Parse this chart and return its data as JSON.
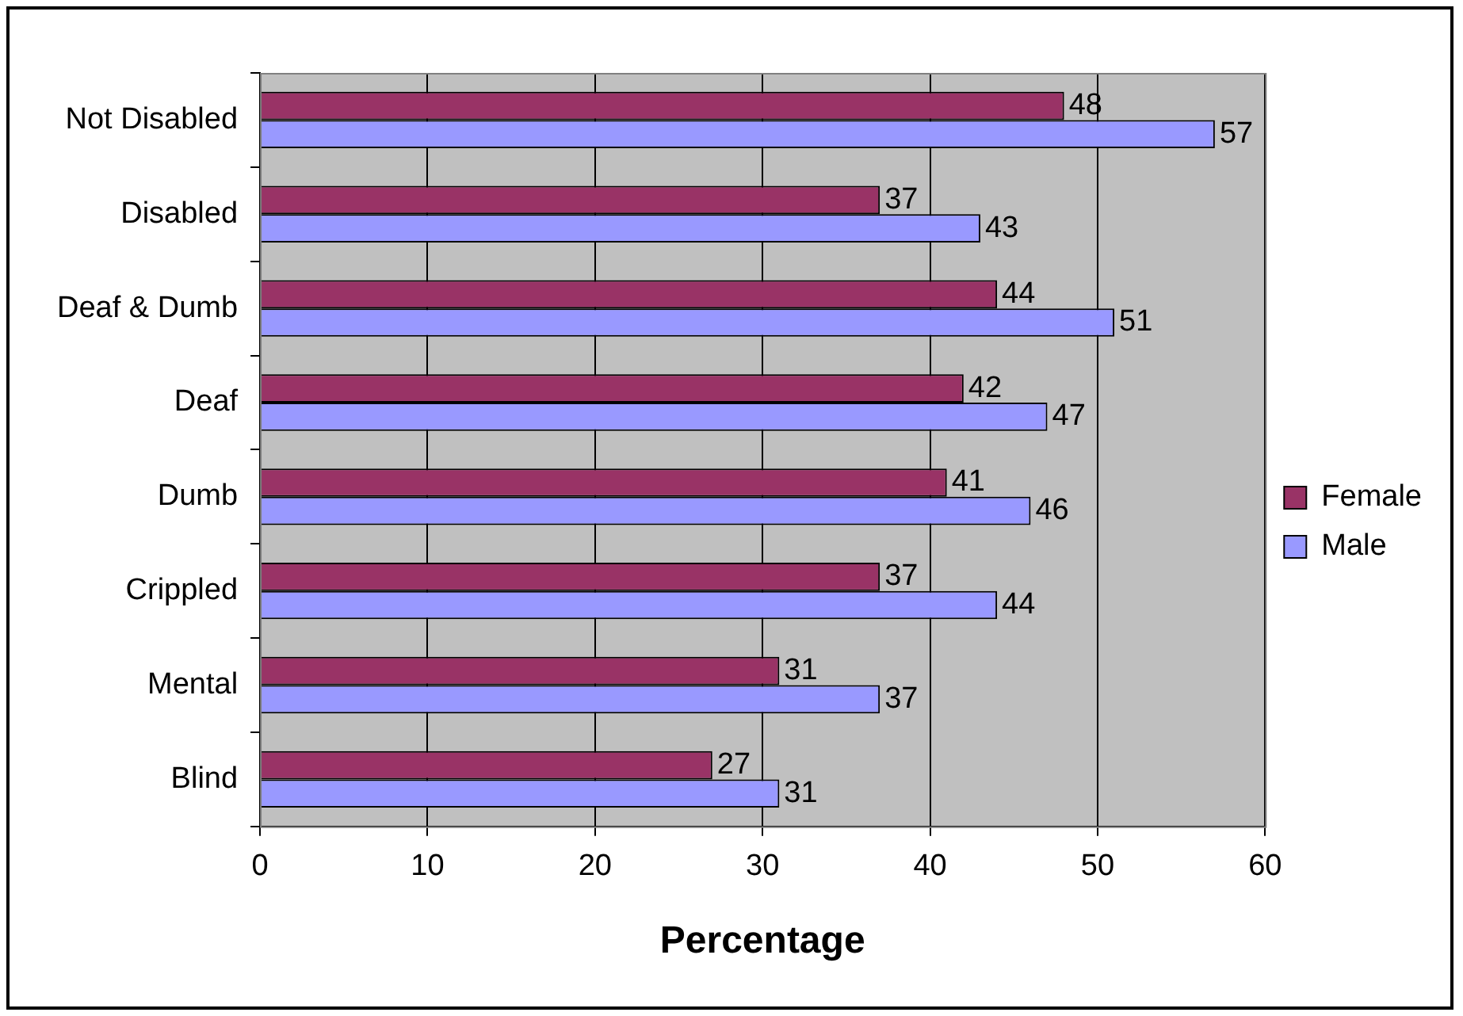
{
  "chart_data": {
    "type": "bar",
    "orientation": "horizontal",
    "xlabel": "Percentage",
    "categories": [
      "Not Disabled",
      "Disabled",
      "Deaf & Dumb",
      "Deaf",
      "Dumb",
      "Crippled",
      "Mental",
      "Blind"
    ],
    "series": [
      {
        "name": "Female",
        "color": "#993366",
        "values": [
          48,
          37,
          44,
          42,
          41,
          37,
          31,
          27
        ]
      },
      {
        "name": "Male",
        "color": "#9999ff",
        "values": [
          57,
          43,
          51,
          47,
          46,
          44,
          37,
          31
        ]
      }
    ],
    "xlim": [
      0,
      60
    ],
    "xticks": [
      0,
      10,
      20,
      30,
      40,
      50,
      60
    ],
    "grid": "x",
    "legend": "right",
    "data_labels": true
  }
}
